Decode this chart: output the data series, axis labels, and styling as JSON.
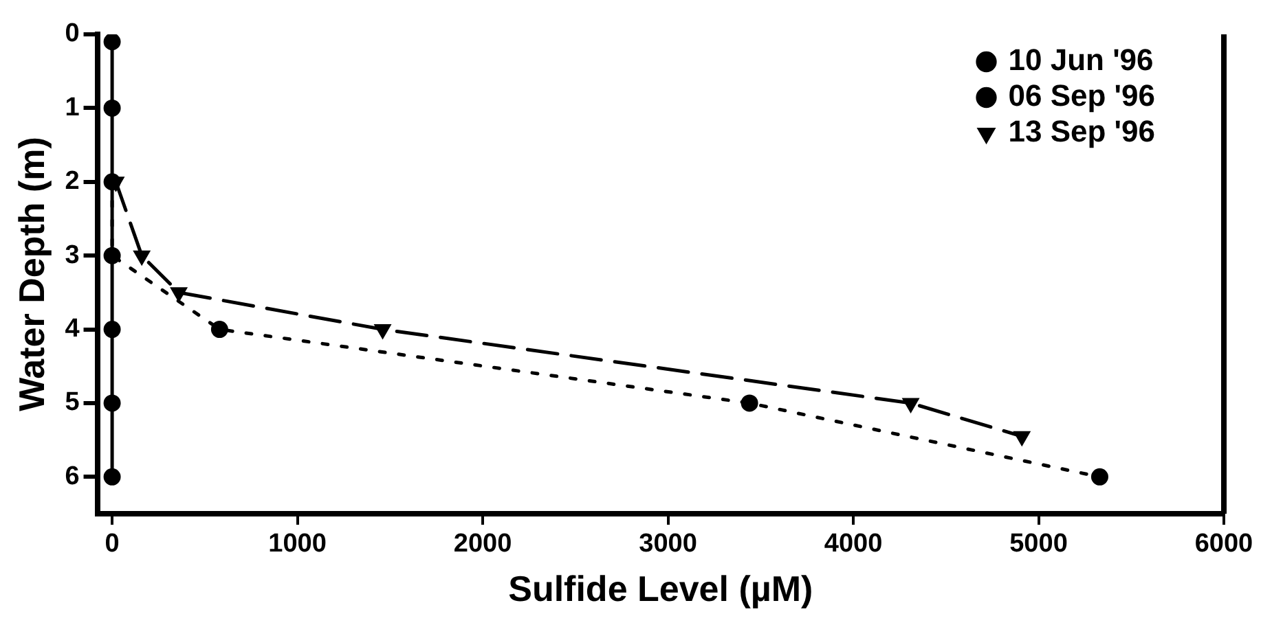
{
  "chart_data": {
    "type": "line",
    "xlabel": "Sulfide Level (µM)",
    "ylabel": "Water Depth (m)",
    "xlim": [
      -80,
      6000
    ],
    "xticks": [
      0,
      1000,
      2000,
      3000,
      4000,
      5000,
      6000
    ],
    "ylim": [
      6.5,
      0
    ],
    "yticks": [
      0,
      1,
      2,
      3,
      4,
      5,
      6
    ],
    "grid": false,
    "legend": "top right",
    "series": [
      {
        "name": "10 Jun '96",
        "color": "#000000",
        "marker": "circle",
        "line_style": "solid",
        "x": [
          0,
          0,
          0,
          0,
          0
        ],
        "values": [
          0.1,
          1,
          4,
          5,
          6
        ]
      },
      {
        "name": "06 Sep '96",
        "color": "#000000",
        "marker": "circle",
        "line_style": "dotted",
        "x": [
          0,
          0,
          580,
          3440,
          5330
        ],
        "values": [
          2,
          3,
          4,
          5,
          6
        ]
      },
      {
        "name": "13 Sep '96",
        "color": "#000000",
        "marker": "triangle",
        "line_style": "dashed",
        "x": [
          20,
          160,
          360,
          1460,
          4310,
          4910
        ],
        "values": [
          2,
          3,
          3.5,
          4,
          5,
          5.45
        ]
      }
    ]
  }
}
